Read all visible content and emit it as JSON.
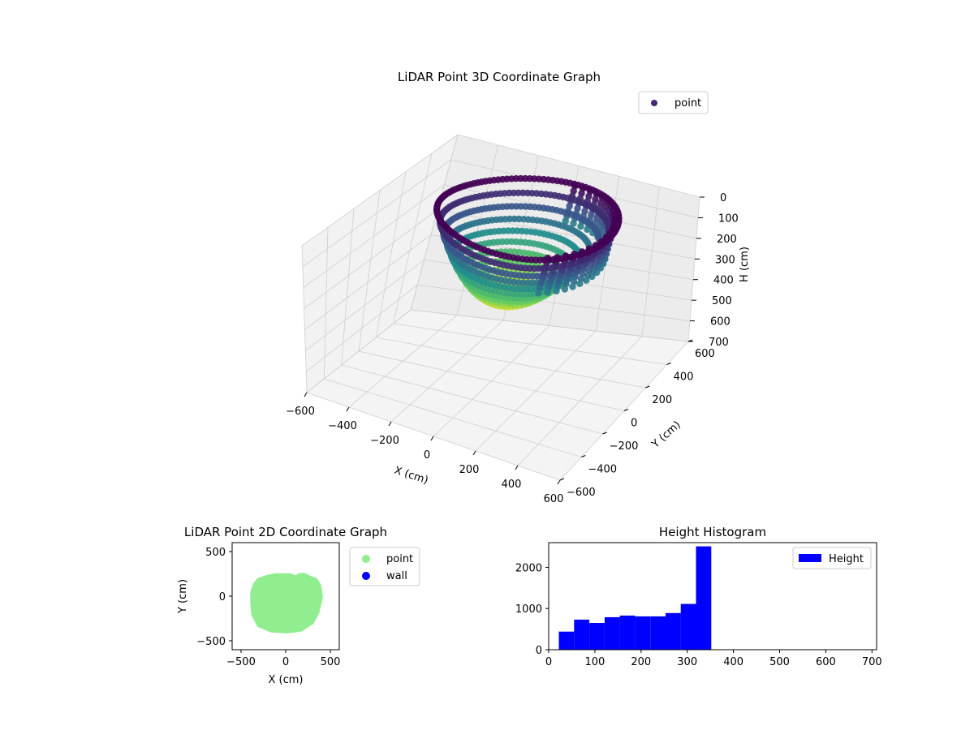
{
  "chart_data": [
    {
      "type": "scatter",
      "title": "LiDAR Point 3D Coordinate Graph",
      "xlabel": "X (cm)",
      "ylabel": "Y (cm)",
      "zlabel": "H (cm)",
      "xlim": [
        -600,
        600
      ],
      "ylim": [
        -600,
        600
      ],
      "zlim": [
        700,
        0
      ],
      "x_ticks": [
        "−600",
        "−400",
        "−200",
        "0",
        "200",
        "400",
        "600"
      ],
      "y_ticks": [
        "−600",
        "−400",
        "−200",
        "0",
        "200",
        "400",
        "600"
      ],
      "z_ticks": [
        "0",
        "100",
        "200",
        "300",
        "400",
        "500",
        "600",
        "700"
      ],
      "legend": [
        "point"
      ],
      "legend_position": "upper right",
      "colormap": "viridis",
      "grid": true,
      "shape": "bowl",
      "bowl_radius_cm": 380,
      "bowl_rim_height_cm": 0,
      "bowl_bottom_height_cm": 340,
      "colors": {
        "high": "#440154",
        "mid": "#21918c",
        "low": "#fde725",
        "legend_marker": "#46277a"
      }
    },
    {
      "type": "scatter",
      "title": "LiDAR Point 2D Coordinate Graph",
      "xlabel": "X (cm)",
      "ylabel": "Y (cm)",
      "xlim": [
        -600,
        600
      ],
      "ylim": [
        -600,
        600
      ],
      "x_ticks": [
        "−500",
        "0",
        "500"
      ],
      "y_ticks": [
        "−500",
        "0",
        "500"
      ],
      "series": [
        {
          "name": "point",
          "color": "#90ee90",
          "outline_cm": [
            [
              -370,
              -60
            ],
            [
              -360,
              -200
            ],
            [
              -300,
              -320
            ],
            [
              -160,
              -380
            ],
            [
              20,
              -390
            ],
            [
              170,
              -370
            ],
            [
              290,
              -290
            ],
            [
              350,
              -180
            ],
            [
              390,
              -10
            ],
            [
              370,
              120
            ],
            [
              330,
              180
            ],
            [
              270,
              200
            ],
            [
              200,
              235
            ],
            [
              150,
              230
            ],
            [
              120,
              200
            ],
            [
              50,
              230
            ],
            [
              -10,
              230
            ],
            [
              -110,
              230
            ],
            [
              -190,
              215
            ],
            [
              -300,
              180
            ],
            [
              -340,
              130
            ],
            [
              -370,
              40
            ]
          ]
        },
        {
          "name": "wall",
          "color": "#0000ff",
          "outline_cm": []
        }
      ],
      "legend_position": "outside right"
    },
    {
      "type": "bar",
      "title": "Height Histogram",
      "xlim": [
        0,
        710
      ],
      "ylim": [
        0,
        2600
      ],
      "x_ticks": [
        "0",
        "100",
        "200",
        "300",
        "400",
        "500",
        "600",
        "700"
      ],
      "y_ticks": [
        "0",
        "1000",
        "2000"
      ],
      "bins": [
        [
          22,
          55,
          440
        ],
        [
          55,
          88,
          730
        ],
        [
          88,
          121,
          650
        ],
        [
          121,
          154,
          790
        ],
        [
          154,
          187,
          830
        ],
        [
          187,
          220,
          810
        ],
        [
          220,
          253,
          810
        ],
        [
          253,
          286,
          890
        ],
        [
          286,
          319,
          1110
        ],
        [
          319,
          352,
          2510
        ]
      ],
      "series": [
        {
          "name": "Height",
          "color": "#0000ff"
        }
      ],
      "legend_position": "upper right"
    }
  ]
}
